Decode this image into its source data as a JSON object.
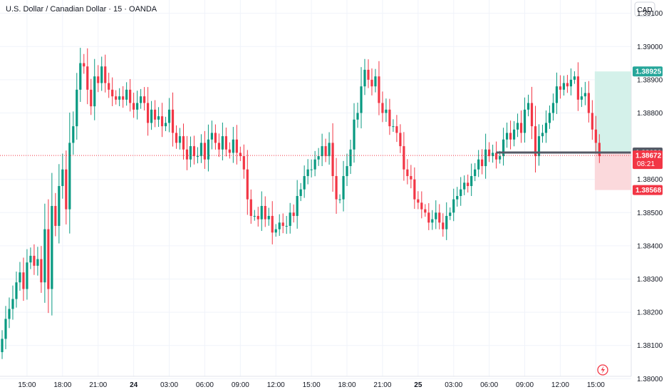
{
  "chart_data": {
    "type": "candlestick",
    "title": "U.S. Dollar / Canadian Dollar · 15 · OANDA",
    "currency": "CAD",
    "ylim": [
      1.3796,
      1.3914
    ],
    "y_ticks": [
      "1.39100",
      "1.39000",
      "1.38900",
      "1.38800",
      "1.38600",
      "1.38500",
      "1.38400",
      "1.38300",
      "1.38200",
      "1.38100",
      "1.38000"
    ],
    "x_ticks": [
      {
        "label": "15:00",
        "index": 7,
        "bold": false
      },
      {
        "label": "18:00",
        "index": 17,
        "bold": false
      },
      {
        "label": "21:00",
        "index": 27,
        "bold": false
      },
      {
        "label": "24",
        "index": 37,
        "bold": true
      },
      {
        "label": "03:00",
        "index": 47,
        "bold": false
      },
      {
        "label": "06:00",
        "index": 57,
        "bold": false
      },
      {
        "label": "09:00",
        "index": 67,
        "bold": false
      },
      {
        "label": "12:00",
        "index": 77,
        "bold": false
      },
      {
        "label": "15:00",
        "index": 87,
        "bold": false
      },
      {
        "label": "18:00",
        "index": 97,
        "bold": false
      },
      {
        "label": "21:00",
        "index": 107,
        "bold": false
      },
      {
        "label": "25",
        "index": 117,
        "bold": true
      },
      {
        "label": "03:00",
        "index": 127,
        "bold": false
      },
      {
        "label": "06:00",
        "index": 137,
        "bold": false
      },
      {
        "label": "09:00",
        "index": 147,
        "bold": false
      },
      {
        "label": "12:00",
        "index": 157,
        "bold": false
      },
      {
        "label": "15:00",
        "index": 167,
        "bold": false
      }
    ],
    "closes": [
      1.3812,
      1.3818,
      1.3821,
      1.3824,
      1.3829,
      1.3832,
      1.3827,
      1.3835,
      1.3837,
      1.3834,
      1.3836,
      1.3829,
      1.3845,
      1.3827,
      1.3852,
      1.3846,
      1.3858,
      1.3863,
      1.3851,
      1.3871,
      1.3876,
      1.3887,
      1.3895,
      1.3894,
      1.3887,
      1.3882,
      1.3891,
      1.3889,
      1.3894,
      1.3889,
      1.3887,
      1.3885,
      1.3884,
      1.3885,
      1.3884,
      1.3887,
      1.3883,
      1.3881,
      1.3883,
      1.3885,
      1.3883,
      1.3877,
      1.3881,
      1.3878,
      1.3879,
      1.3876,
      1.3877,
      1.3881,
      1.3874,
      1.3871,
      1.3873,
      1.3869,
      1.3866,
      1.387,
      1.3867,
      1.3867,
      1.3871,
      1.3866,
      1.3872,
      1.3874,
      1.3871,
      1.3869,
      1.3873,
      1.3869,
      1.3868,
      1.3872,
      1.3868,
      1.3867,
      1.3863,
      1.3854,
      1.3849,
      1.3849,
      1.3848,
      1.3852,
      1.3848,
      1.3849,
      1.3844,
      1.3845,
      1.3847,
      1.3846,
      1.3846,
      1.385,
      1.3849,
      1.3855,
      1.3857,
      1.3861,
      1.3863,
      1.3863,
      1.3866,
      1.3867,
      1.387,
      1.3867,
      1.3871,
      1.3861,
      1.3854,
      1.3854,
      1.3861,
      1.3864,
      1.3869,
      1.3878,
      1.388,
      1.3888,
      1.3893,
      1.389,
      1.3888,
      1.3891,
      1.3883,
      1.388,
      1.3881,
      1.3876,
      1.3876,
      1.3874,
      1.387,
      1.3863,
      1.3861,
      1.386,
      1.3854,
      1.3853,
      1.3851,
      1.385,
      1.3847,
      1.3848,
      1.385,
      1.3847,
      1.3845,
      1.3849,
      1.385,
      1.3854,
      1.3855,
      1.3857,
      1.3859,
      1.3858,
      1.3861,
      1.3863,
      1.3866,
      1.3864,
      1.3869,
      1.3867,
      1.3868,
      1.3866,
      1.3867,
      1.3872,
      1.3874,
      1.3872,
      1.3875,
      1.3877,
      1.3874,
      1.3881,
      1.3883,
      1.3876,
      1.3867,
      1.3873,
      1.3874,
      1.3877,
      1.388,
      1.3883,
      1.3888,
      1.3887,
      1.3889,
      1.3888,
      1.389,
      1.3891,
      1.3884,
      1.3885,
      1.3886,
      1.388,
      1.3875,
      1.3871,
      1.3867
    ],
    "last_price": "1.38672",
    "countdown": "08:21",
    "entry_price": "1.38681",
    "take_profit": "1.38925",
    "stop_loss": "1.38568",
    "colors": {
      "up": "#089981",
      "down": "#f23645",
      "tp_zone": "#d4f1ea",
      "sl_zone": "#fbd9dc",
      "tp_tag": "#26a69a",
      "sl_tag": "#f23645",
      "line": "#555a66",
      "accent": "#f23645"
    }
  }
}
